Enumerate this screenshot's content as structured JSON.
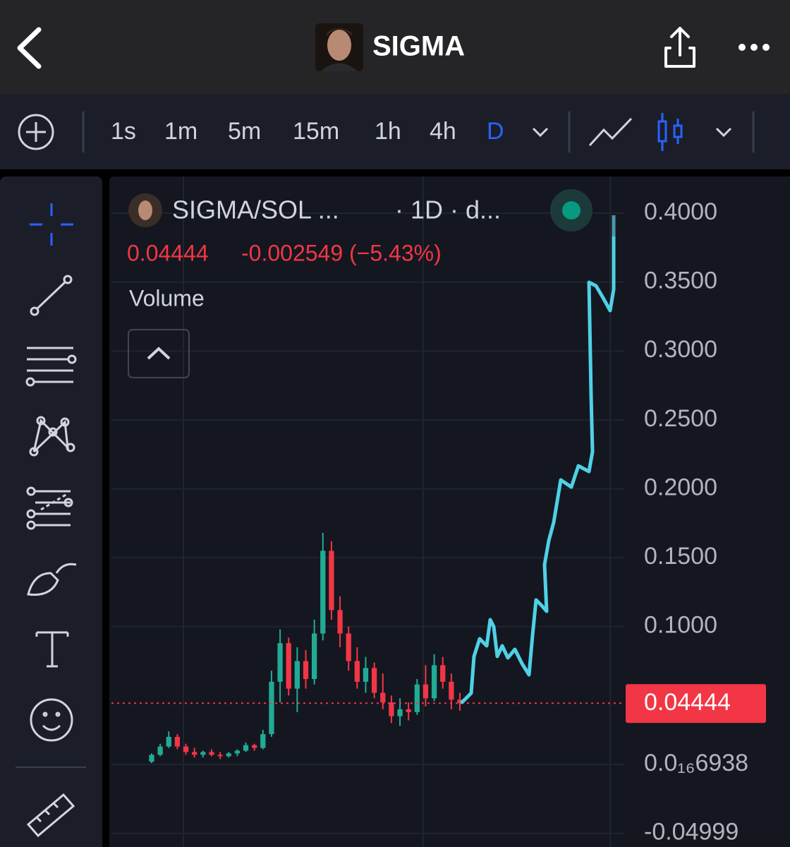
{
  "header": {
    "title": "SIGMA"
  },
  "toolbar": {
    "timeframes": [
      "1s",
      "1m",
      "5m",
      "15m",
      "1h",
      "4h",
      "D"
    ]
  },
  "chart_data": {
    "type": "candlestick",
    "symbol": "SIGMA/SOL ...",
    "interval": "· 1D · d...",
    "change": "-0.002549 (−5.43%)",
    "indicator": "Volume",
    "last_price": 0.04444,
    "up_color": "#22ab94",
    "down_color": "#f23645",
    "open": [
      0.002,
      0.007,
      0.013,
      0.02,
      0.013,
      0.009,
      0.007,
      0.009,
      0.007,
      0.006,
      0.008,
      0.01,
      0.014,
      0.012,
      0.022,
      0.06,
      0.088,
      0.055,
      0.075,
      0.062,
      0.095,
      0.155,
      0.112,
      0.095,
      0.075,
      0.06,
      0.07,
      0.052,
      0.045,
      0.035,
      0.04,
      0.038,
      0.058,
      0.048,
      0.072,
      0.06,
      0.047
    ],
    "high": [
      0.008,
      0.015,
      0.024,
      0.022,
      0.015,
      0.012,
      0.01,
      0.011,
      0.009,
      0.009,
      0.011,
      0.016,
      0.015,
      0.025,
      0.068,
      0.098,
      0.092,
      0.085,
      0.083,
      0.105,
      0.168,
      0.162,
      0.122,
      0.1,
      0.085,
      0.078,
      0.074,
      0.066,
      0.05,
      0.048,
      0.045,
      0.062,
      0.072,
      0.08,
      0.078,
      0.066,
      0.052
    ],
    "low": [
      0.001,
      0.006,
      0.012,
      0.011,
      0.007,
      0.005,
      0.005,
      0.006,
      0.004,
      0.005,
      0.006,
      0.009,
      0.01,
      0.011,
      0.02,
      0.045,
      0.05,
      0.038,
      0.055,
      0.058,
      0.09,
      0.105,
      0.085,
      0.068,
      0.055,
      0.052,
      0.048,
      0.04,
      0.03,
      0.028,
      0.032,
      0.036,
      0.042,
      0.046,
      0.055,
      0.04,
      0.039
    ],
    "close": [
      0.007,
      0.013,
      0.02,
      0.013,
      0.009,
      0.007,
      0.009,
      0.007,
      0.006,
      0.008,
      0.01,
      0.014,
      0.012,
      0.022,
      0.06,
      0.088,
      0.055,
      0.075,
      0.062,
      0.095,
      0.155,
      0.112,
      0.095,
      0.075,
      0.06,
      0.07,
      0.052,
      0.045,
      0.035,
      0.04,
      0.038,
      0.058,
      0.048,
      0.072,
      0.06,
      0.047,
      0.04444
    ],
    "ylim": [
      -0.0599,
      0.4266
    ],
    "yticks": [
      {
        "value": 0.4,
        "label": "0.4000"
      },
      {
        "value": 0.35,
        "label": "0.3500"
      },
      {
        "value": 0.3,
        "label": "0.3000"
      },
      {
        "value": 0.25,
        "label": "0.2500"
      },
      {
        "value": 0.2,
        "label": "0.2000"
      },
      {
        "value": 0.15,
        "label": "0.1500"
      },
      {
        "value": 0.1,
        "label": "0.1000"
      },
      {
        "value": 6.938e-18,
        "label": "0.0₁₆6938"
      },
      {
        "value": -0.04999,
        "label": "-0.04999"
      }
    ],
    "grid": true
  }
}
